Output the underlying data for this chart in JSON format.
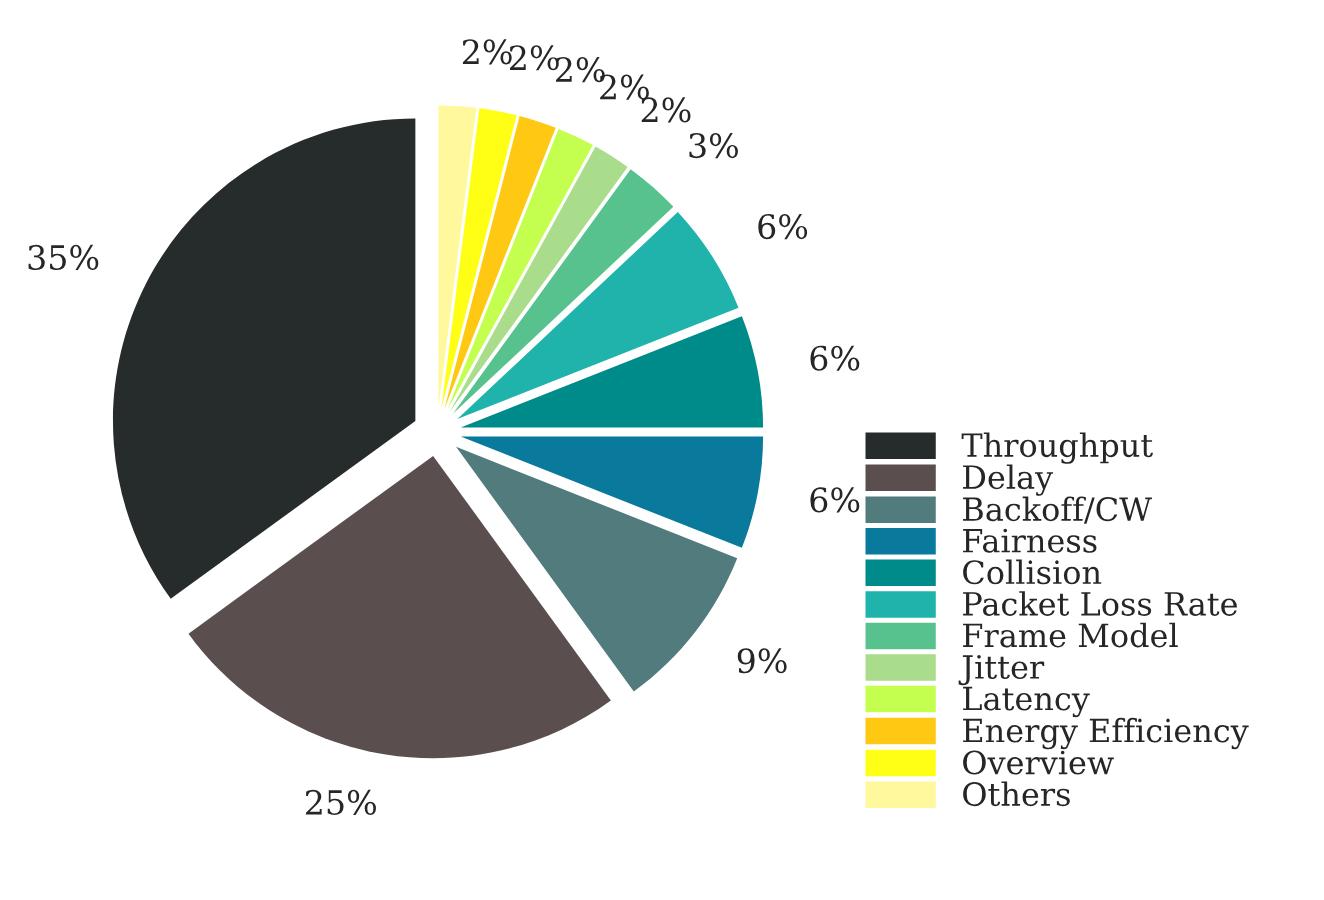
{
  "chart_data": {
    "type": "pie",
    "categories": [
      "Throughput",
      "Delay",
      "Backoff/CW",
      "Fairness",
      "Collision",
      "Packet Loss Rate",
      "Frame Model",
      "Jitter",
      "Latency",
      "Energy Efficiency",
      "Overview",
      "Others"
    ],
    "values": [
      35,
      25,
      9,
      6,
      6,
      6,
      3,
      2,
      2,
      2,
      2,
      2
    ],
    "colors": [
      "#262b2b",
      "#5a4f4e",
      "#527b7e",
      "#097a9b",
      "#008b8b",
      "#1fb3ac",
      "#58c28e",
      "#a9dd8b",
      "#c4ff4f",
      "#ffc812",
      "#ffff16",
      "#fff89c"
    ],
    "value_labels": [
      "35%",
      "25%",
      "9%",
      "6%",
      "6%",
      "6%",
      "3%",
      "2%",
      "2%",
      "2%",
      "2%",
      "2%"
    ],
    "legend": "bottom right"
  }
}
